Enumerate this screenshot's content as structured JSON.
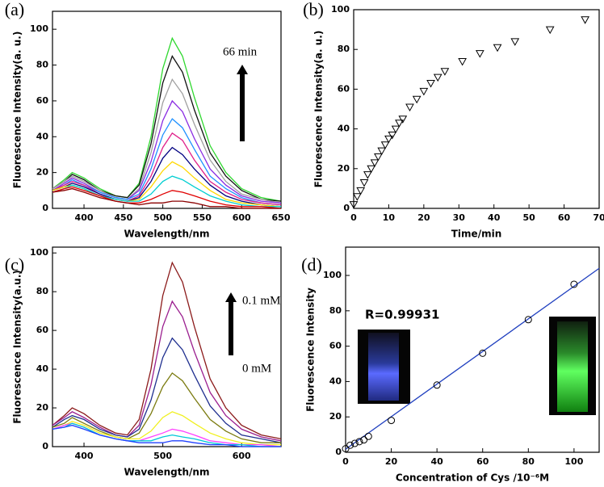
{
  "chart_data": [
    {
      "type": "line",
      "label": "(a)",
      "x_label": "Wavelength/nm",
      "y_label": "Fluorescence Intensity(a. u.)",
      "xlim": [
        360,
        650
      ],
      "ylim": [
        0,
        110
      ],
      "xticks": [
        400,
        450,
        500,
        550,
        600,
        650
      ],
      "yticks": [
        0,
        20,
        40,
        60,
        80,
        100
      ],
      "annotations": [
        "66 min"
      ],
      "x": [
        360,
        375,
        385,
        400,
        420,
        440,
        455,
        470,
        485,
        500,
        512,
        525,
        540,
        560,
        580,
        600,
        625,
        650
      ],
      "series": [
        {
          "color": "#2fd82f",
          "values": [
            11,
            16,
            20,
            17,
            11,
            7,
            6,
            14,
            40,
            78,
            95,
            85,
            62,
            35,
            20,
            11,
            6,
            4
          ]
        },
        {
          "color": "#111111",
          "values": [
            11,
            15,
            19,
            16,
            10,
            7,
            6,
            13,
            36,
            70,
            85,
            76,
            55,
            31,
            18,
            10,
            5,
            4
          ]
        },
        {
          "color": "#a0a0a0",
          "values": [
            11,
            15,
            18,
            15,
            10,
            6,
            5,
            11,
            31,
            59,
            72,
            64,
            47,
            27,
            15,
            8,
            5,
            3
          ]
        },
        {
          "color": "#8a2be2",
          "values": [
            10,
            14,
            17,
            14,
            9,
            6,
            5,
            10,
            26,
            49,
            60,
            54,
            39,
            22,
            13,
            7,
            4,
            3
          ]
        },
        {
          "color": "#1e90ff",
          "values": [
            10,
            13,
            16,
            13,
            9,
            6,
            5,
            8,
            22,
            41,
            50,
            45,
            33,
            18,
            11,
            6,
            3,
            2
          ]
        },
        {
          "color": "#e0208a",
          "values": [
            10,
            13,
            15,
            13,
            8,
            5,
            4,
            7,
            18,
            34,
            42,
            38,
            27,
            15,
            9,
            5,
            3,
            2
          ]
        },
        {
          "color": "#000080",
          "values": [
            10,
            12,
            14,
            12,
            8,
            5,
            4,
            6,
            15,
            28,
            34,
            30,
            22,
            13,
            7,
            4,
            2,
            1
          ]
        },
        {
          "color": "#ffd700",
          "values": [
            10,
            12,
            13,
            11,
            7,
            5,
            4,
            5,
            12,
            21,
            26,
            23,
            17,
            10,
            5,
            3,
            2,
            1
          ]
        },
        {
          "color": "#00ced1",
          "values": [
            9,
            11,
            13,
            11,
            7,
            5,
            4,
            4,
            8,
            15,
            18,
            16,
            12,
            7,
            4,
            2,
            1,
            1
          ]
        },
        {
          "color": "#e00000",
          "values": [
            9,
            11,
            12,
            10,
            7,
            4,
            3,
            3,
            5,
            8,
            10,
            9,
            7,
            4,
            2,
            1,
            1,
            0
          ]
        },
        {
          "color": "#8b0000",
          "values": [
            9,
            10,
            11,
            9,
            6,
            4,
            3,
            2,
            3,
            3,
            4,
            4,
            3,
            1,
            1,
            0,
            0,
            0
          ]
        }
      ]
    },
    {
      "type": "scatter",
      "label": "(b)",
      "x_label": "Time/min",
      "y_label": "Fluorescence Intensity(a. u.)",
      "xlim": [
        0,
        70
      ],
      "ylim": [
        0,
        100
      ],
      "xticks": [
        0,
        10,
        20,
        30,
        40,
        50,
        60,
        70
      ],
      "yticks": [
        0,
        20,
        40,
        60,
        80,
        100
      ],
      "marker": "triangle",
      "color": "#000000",
      "x": [
        0,
        1,
        2,
        3,
        4,
        5,
        6,
        7,
        8,
        9,
        10,
        11,
        12,
        13,
        14,
        16,
        18,
        20,
        22,
        24,
        26,
        31,
        36,
        41,
        46,
        56,
        66
      ],
      "values": [
        2,
        6,
        9,
        13,
        17,
        20,
        23,
        26,
        29,
        32,
        35,
        37,
        40,
        43,
        45,
        51,
        55,
        59,
        63,
        66,
        69,
        74,
        78,
        81,
        84,
        90,
        95
      ]
    },
    {
      "type": "line",
      "label": "(c)",
      "x_label": "Wavelength/nm",
      "y_label": "Fluorescence Intensity(a.u.)",
      "xlim": [
        360,
        650
      ],
      "ylim": [
        0,
        103
      ],
      "xticks": [
        400,
        500,
        600
      ],
      "yticks": [
        0,
        20,
        40,
        60,
        80,
        100
      ],
      "annotations": [
        "0.1 mM",
        "0 mM"
      ],
      "x": [
        360,
        375,
        385,
        400,
        420,
        440,
        455,
        470,
        485,
        500,
        512,
        525,
        540,
        560,
        580,
        600,
        625,
        650
      ],
      "series": [
        {
          "color": "#8b1a1a",
          "values": [
            11,
            16,
            20,
            17,
            11,
            7,
            6,
            14,
            40,
            78,
            95,
            85,
            62,
            35,
            20,
            11,
            6,
            4
          ]
        },
        {
          "color": "#9b1f8f",
          "values": [
            11,
            15,
            18,
            15,
            10,
            6,
            5,
            11,
            32,
            62,
            75,
            67,
            49,
            28,
            16,
            9,
            5,
            3
          ]
        },
        {
          "color": "#1f2f8f",
          "values": [
            10,
            14,
            16,
            14,
            9,
            6,
            5,
            9,
            24,
            46,
            56,
            50,
            37,
            21,
            12,
            6,
            4,
            2
          ]
        },
        {
          "color": "#7b7b10",
          "values": [
            10,
            12,
            15,
            12,
            8,
            5,
            4,
            7,
            17,
            31,
            38,
            34,
            25,
            14,
            8,
            4,
            2,
            2
          ]
        },
        {
          "color": "#f0f020",
          "values": [
            9,
            11,
            13,
            11,
            7,
            5,
            4,
            4,
            8,
            15,
            18,
            16,
            12,
            7,
            4,
            2,
            1,
            1
          ]
        },
        {
          "color": "#ff40ff",
          "values": [
            9,
            11,
            12,
            10,
            6,
            4,
            3,
            3,
            5,
            7,
            9,
            8,
            6,
            3,
            2,
            1,
            1,
            0
          ]
        },
        {
          "color": "#00c8d8",
          "values": [
            9,
            10,
            12,
            10,
            6,
            4,
            3,
            3,
            3,
            5,
            6,
            5,
            4,
            2,
            1,
            1,
            0,
            0
          ]
        },
        {
          "color": "#2040ff",
          "values": [
            9,
            10,
            11,
            9,
            6,
            4,
            3,
            2,
            2,
            2,
            3,
            3,
            2,
            1,
            1,
            0,
            0,
            0
          ]
        }
      ]
    },
    {
      "type": "scatter",
      "label": "(d)",
      "x_label": "Concentration of Cys /10⁻⁶M",
      "y_label": "Fluorescence Intensity",
      "xlim": [
        0,
        111
      ],
      "ylim": [
        0,
        116
      ],
      "xticks": [
        0,
        20,
        40,
        60,
        80,
        100
      ],
      "yticks": [
        0,
        20,
        40,
        60,
        80,
        100
      ],
      "marker": "circle",
      "color": "#000000",
      "annotations": [
        "R=0.99931"
      ],
      "x": [
        0,
        2,
        4,
        6,
        8,
        10,
        20,
        40,
        60,
        80,
        100
      ],
      "values": [
        2,
        4,
        5,
        6,
        7,
        9,
        18,
        38,
        56,
        75,
        95
      ],
      "fit": {
        "color": "#1f3fbf",
        "x": [
          0,
          111
        ],
        "y": [
          1.7,
          104
        ]
      }
    }
  ]
}
